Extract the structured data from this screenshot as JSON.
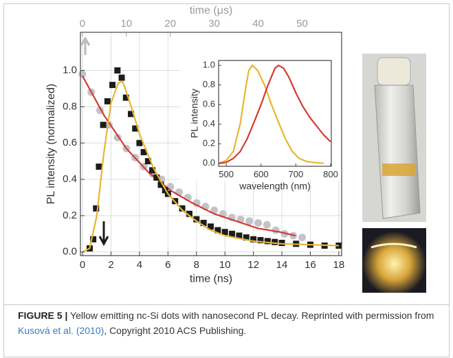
{
  "chart_data": [
    {
      "type": "line",
      "xlabel": "time (ns)",
      "x2label": "time (μs)",
      "ylabel": "PL intensity (normalized)",
      "xlim": [
        -0.15,
        18.2
      ],
      "xticks": [
        0,
        2,
        4,
        6,
        8,
        10,
        12,
        14,
        16,
        18
      ],
      "x2lim": [
        -0.45,
        59
      ],
      "x2ticks": [
        0,
        10,
        20,
        30,
        40,
        50
      ],
      "ylim": [
        -0.02,
        1.21
      ],
      "yticks": [
        {
          "value": 0,
          "label": "0.0"
        },
        0.2,
        0.4,
        0.6,
        0.8,
        {
          "value": 1,
          "label": "1.0"
        }
      ],
      "grid": true,
      "series": [
        {
          "style": "markers",
          "marker": "circle",
          "axis": "x2",
          "color": "#c3c3c9",
          "x": [
            0,
            2,
            4,
            6,
            8,
            10,
            12,
            14,
            16,
            18,
            20,
            22,
            24,
            26,
            28,
            30,
            32,
            34,
            36,
            38,
            40,
            42,
            44,
            46,
            48,
            50
          ],
          "values": [
            0.98,
            0.88,
            0.78,
            0.7,
            0.63,
            0.57,
            0.52,
            0.47,
            0.43,
            0.4,
            0.36,
            0.33,
            0.3,
            0.27,
            0.25,
            0.23,
            0.21,
            0.19,
            0.18,
            0.17,
            0.16,
            0.15,
            0.12,
            0.1,
            0.09,
            0.08
          ]
        },
        {
          "style": "line",
          "axis": "x2",
          "color": "#d33a32",
          "x": [
            0,
            5,
            10,
            15,
            20,
            25,
            30,
            35,
            40,
            45,
            48.5
          ],
          "values": [
            0.97,
            0.75,
            0.57,
            0.44,
            0.34,
            0.27,
            0.21,
            0.17,
            0.13,
            0.11,
            0.09
          ]
        },
        {
          "style": "markers",
          "marker": "square",
          "color": "#1c1c1c",
          "x": [
            0.5,
            0.75,
            0.95,
            1.15,
            1.45,
            1.75,
            2.1,
            2.45,
            2.75,
            3.05,
            3.4,
            3.7,
            4.0,
            4.3,
            4.6,
            4.9,
            5.2,
            5.5,
            5.8,
            6,
            6.5,
            7,
            7.5,
            8,
            8.5,
            9,
            9.5,
            10,
            10.5,
            11,
            11.5,
            12,
            12.5,
            13,
            13.5,
            14,
            15,
            16,
            17,
            18
          ],
          "values": [
            0.02,
            0.07,
            0.24,
            0.47,
            0.7,
            0.83,
            0.92,
            1.0,
            0.96,
            0.85,
            0.76,
            0.68,
            0.6,
            0.55,
            0.5,
            0.45,
            0.41,
            0.37,
            0.34,
            0.32,
            0.28,
            0.24,
            0.21,
            0.18,
            0.16,
            0.14,
            0.12,
            0.11,
            0.1,
            0.09,
            0.08,
            0.07,
            0.065,
            0.06,
            0.055,
            0.05,
            0.045,
            0.04,
            0.035,
            0.035
          ]
        },
        {
          "style": "line",
          "color": "#e8b530",
          "x": [
            0,
            0.5,
            1,
            1.5,
            2,
            2.5,
            2.8,
            3,
            3.5,
            4,
            5,
            6,
            7,
            8,
            9,
            10,
            12,
            14,
            16,
            18
          ],
          "values": [
            0,
            0.02,
            0.2,
            0.55,
            0.82,
            0.93,
            0.94,
            0.9,
            0.78,
            0.65,
            0.46,
            0.32,
            0.23,
            0.17,
            0.12,
            0.09,
            0.06,
            0.045,
            0.04,
            0.035
          ]
        }
      ]
    },
    {
      "type": "line",
      "xlabel": "wavelength (nm)",
      "ylabel": "PL intensity",
      "xlim": [
        478,
        802
      ],
      "xticks": [
        500,
        600,
        700,
        800
      ],
      "ylim": [
        -0.03,
        1.05
      ],
      "yticks": [
        {
          "value": 0,
          "label": "0.0"
        },
        0.2,
        0.4,
        0.6,
        0.8,
        {
          "value": 1,
          "label": "1.0"
        }
      ],
      "grid": false,
      "series": [
        {
          "style": "line",
          "color": "#e8b530",
          "x": [
            480,
            500,
            520,
            540,
            555,
            565,
            575,
            590,
            610,
            630,
            650,
            670,
            690,
            710,
            730,
            750,
            780
          ],
          "values": [
            0,
            0.03,
            0.12,
            0.4,
            0.75,
            0.95,
            1.0,
            0.95,
            0.8,
            0.6,
            0.42,
            0.25,
            0.12,
            0.05,
            0.02,
            0.01,
            0
          ]
        },
        {
          "style": "line",
          "color": "#d33a32",
          "x": [
            480,
            500,
            520,
            540,
            560,
            580,
            600,
            620,
            640,
            650,
            665,
            680,
            700,
            720,
            740,
            760,
            780,
            800
          ],
          "values": [
            0,
            0.01,
            0.05,
            0.12,
            0.25,
            0.42,
            0.6,
            0.8,
            0.97,
            1.0,
            0.97,
            0.88,
            0.72,
            0.58,
            0.47,
            0.38,
            0.29,
            0.22
          ]
        }
      ]
    }
  ],
  "caption": {
    "label": "FIGURE 5 |",
    "text": "Yellow emitting nc-Si dots with nanosecond PL decay. Reprinted with permission from",
    "link": "Kusová et al. (2010)",
    "text_end": ", Copyright 2010 ACS Publishing."
  }
}
